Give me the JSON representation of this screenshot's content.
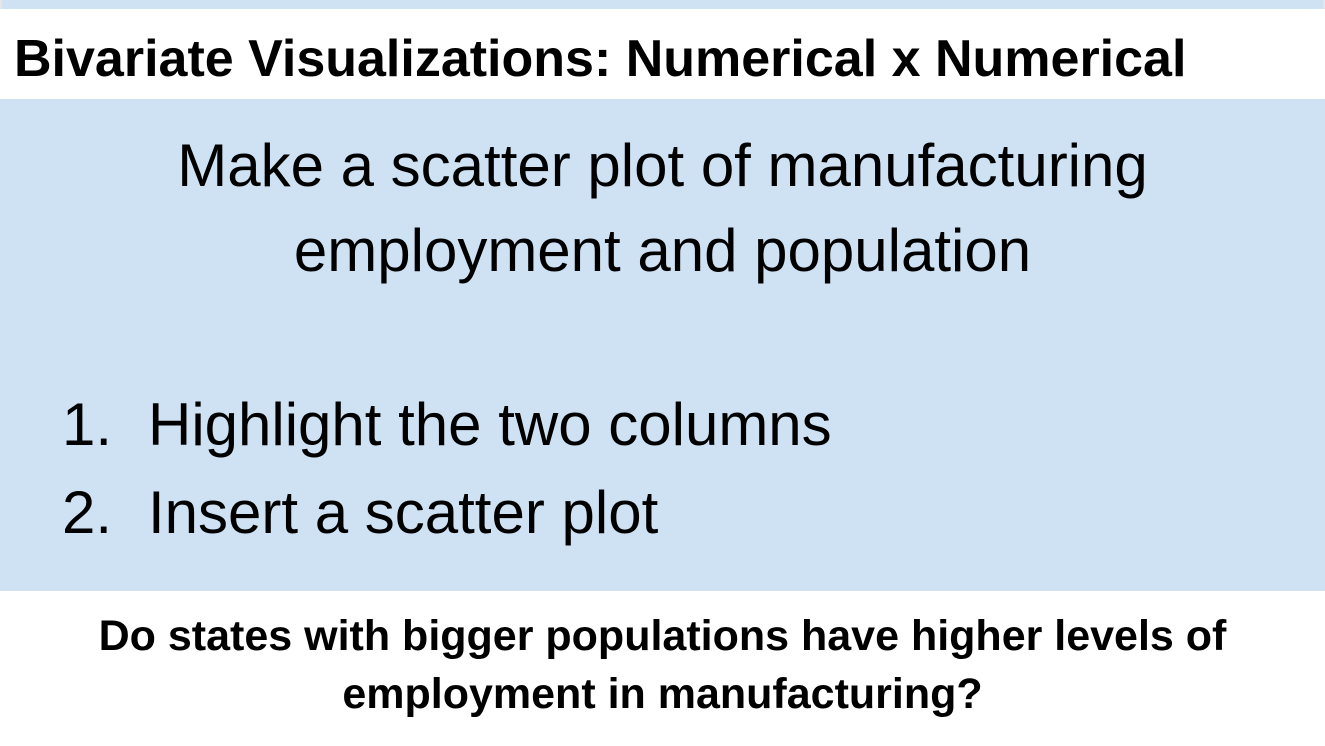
{
  "slide": {
    "title": "Bivariate Visualizations: Numerical x Numerical",
    "lead": "Make a scatter plot of manufacturing employment and population",
    "steps": [
      {
        "number": "1.",
        "text": "Highlight the two columns"
      },
      {
        "number": "2.",
        "text": "Insert a scatter plot"
      }
    ],
    "question": "Do states with bigger populations have higher levels of employment in manufacturing?"
  },
  "colors": {
    "panel": "#cfe2f3",
    "background": "#ffffff",
    "text": "#000000"
  }
}
